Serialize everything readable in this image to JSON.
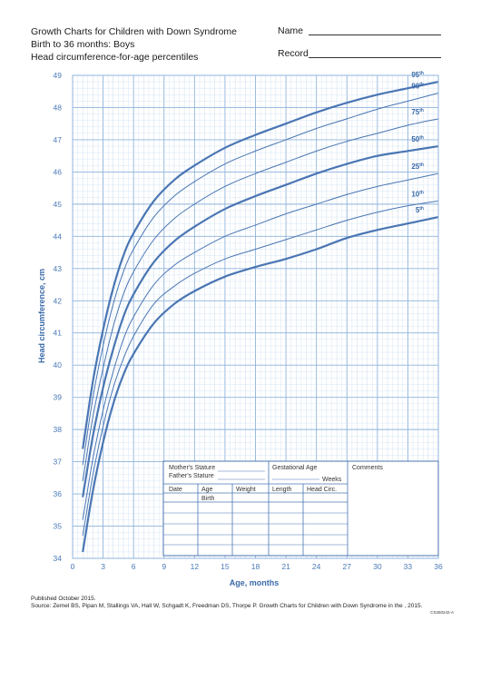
{
  "header": {
    "title": "Growth Charts for Children with Down Syndrome",
    "subtitle": "Birth to 36 months: Boys",
    "metric": "Head circumference-for-age percentiles",
    "name_label": "Name",
    "record_label": "Record"
  },
  "record_form": {
    "mothers_stature": "Mother's Stature",
    "fathers_stature": "Father's Stature",
    "gestational_age": "Gestational Age",
    "weeks": "Weeks",
    "comments": "Comments",
    "columns": [
      "Date",
      "Age",
      "Weight",
      "Length",
      "Head Circ."
    ],
    "first_row_age": "Birth"
  },
  "footer": {
    "published": "Published October 2015.",
    "source": "Source: Zemel BS, Pipan M, Stallings VA, Hall W, Schgadt K, Freedman DS, Thorpe P. Growth Charts for Children with Down Syndrome in the , 2015.",
    "code": "CS260242-A"
  },
  "colors": {
    "grid_minor": "#c9dcef",
    "grid_major": "#8fb3dc",
    "curve": "#4a76b3",
    "axis_text": "#4a79b8"
  },
  "chart_data": {
    "type": "line",
    "xlabel": "Age, months",
    "ylabel": "Head circumference, cm",
    "xlim": [
      0,
      36
    ],
    "ylim": [
      34,
      49
    ],
    "x_ticks": [
      0,
      3,
      6,
      9,
      12,
      15,
      18,
      21,
      24,
      27,
      30,
      33,
      36
    ],
    "y_ticks": [
      34,
      35,
      36,
      37,
      38,
      39,
      40,
      41,
      42,
      43,
      44,
      45,
      46,
      47,
      48,
      49
    ],
    "grid": true,
    "x": [
      1,
      2,
      3,
      4,
      5,
      6,
      8,
      10,
      12,
      15,
      18,
      21,
      24,
      27,
      30,
      33,
      36
    ],
    "series": [
      {
        "name": "95th",
        "label": "95",
        "sup": "th",
        "bold": true,
        "values": [
          37.4,
          39.5,
          41.1,
          42.4,
          43.4,
          44.1,
          45.1,
          45.75,
          46.2,
          46.75,
          47.15,
          47.5,
          47.85,
          48.15,
          48.4,
          48.6,
          48.8
        ]
      },
      {
        "name": "90th",
        "label": "90",
        "sup": "th",
        "bold": false,
        "values": [
          36.9,
          39.0,
          40.6,
          41.9,
          42.9,
          43.6,
          44.6,
          45.25,
          45.7,
          46.25,
          46.65,
          47.0,
          47.35,
          47.65,
          47.95,
          48.2,
          48.45
        ]
      },
      {
        "name": "75th",
        "label": "75",
        "sup": "th",
        "bold": false,
        "values": [
          36.4,
          38.4,
          39.9,
          41.2,
          42.2,
          42.9,
          43.9,
          44.55,
          45.0,
          45.55,
          45.95,
          46.3,
          46.65,
          46.95,
          47.2,
          47.45,
          47.65
        ]
      },
      {
        "name": "50th",
        "label": "50",
        "sup": "th",
        "bold": true,
        "values": [
          35.9,
          37.8,
          39.3,
          40.5,
          41.5,
          42.2,
          43.2,
          43.85,
          44.3,
          44.85,
          45.25,
          45.6,
          45.95,
          46.25,
          46.5,
          46.65,
          46.8
        ]
      },
      {
        "name": "25th",
        "label": "25",
        "sup": "th",
        "bold": false,
        "values": [
          35.2,
          37.1,
          38.6,
          39.8,
          40.8,
          41.5,
          42.5,
          43.1,
          43.5,
          44.0,
          44.35,
          44.7,
          45.0,
          45.3,
          45.55,
          45.75,
          45.95
        ]
      },
      {
        "name": "10th",
        "label": "10",
        "sup": "th",
        "bold": false,
        "values": [
          34.7,
          36.6,
          38.1,
          39.3,
          40.2,
          40.9,
          41.9,
          42.45,
          42.85,
          43.3,
          43.6,
          43.9,
          44.2,
          44.5,
          44.75,
          44.95,
          45.1
        ]
      },
      {
        "name": "5th",
        "label": "5",
        "sup": "th",
        "bold": true,
        "values": [
          34.2,
          36.1,
          37.6,
          38.8,
          39.7,
          40.35,
          41.3,
          41.9,
          42.3,
          42.75,
          43.05,
          43.3,
          43.6,
          43.95,
          44.2,
          44.4,
          44.6
        ]
      }
    ]
  }
}
